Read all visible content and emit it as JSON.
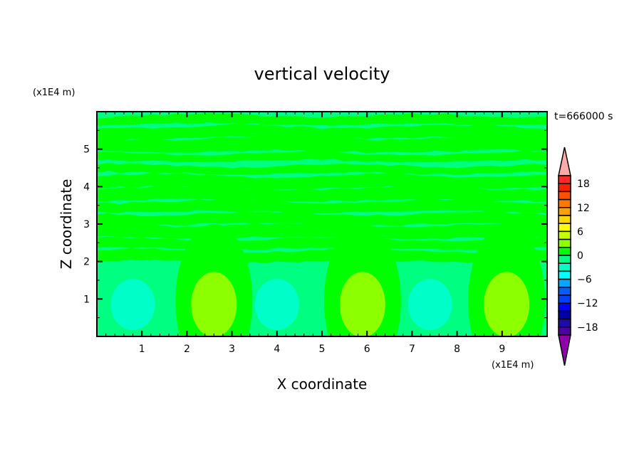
{
  "chart_data": {
    "type": "contour",
    "title": "vertical velocity",
    "xlabel": "X coordinate",
    "ylabel": "Z coordinate",
    "x_unit": "(x1E4 m)",
    "y_unit": "(x1E4 m)",
    "time_label": "t=666000 s",
    "xlim": [
      0,
      10
    ],
    "ylim": [
      0,
      6
    ],
    "x_ticks": [
      1,
      2,
      3,
      4,
      5,
      6,
      7,
      8,
      9
    ],
    "y_ticks": [
      1,
      2,
      3,
      4,
      5
    ],
    "grid": false,
    "colorbar": {
      "levels": [
        -20,
        -18,
        -16,
        -14,
        -12,
        -10,
        -8,
        -6,
        -4,
        -2,
        0,
        2,
        4,
        6,
        8,
        10,
        12,
        14,
        16,
        18,
        20
      ],
      "tick_labels": [
        "18",
        "12",
        "6",
        "0",
        "-6",
        "-12",
        "-18"
      ],
      "tick_values": [
        18,
        12,
        6,
        0,
        -6,
        -12,
        -18
      ],
      "colors_low_to_high": [
        "#4b00a8",
        "#1e0aa8",
        "#0000a8",
        "#0000ff",
        "#0040ff",
        "#0060ff",
        "#00a8ff",
        "#00ffff",
        "#00ffc8",
        "#00ff80",
        "#00ff00",
        "#8cff00",
        "#c8ff00",
        "#ffff00",
        "#ffd700",
        "#ffa000",
        "#ff7800",
        "#ff5000",
        "#ff2000",
        "#ff2828"
      ],
      "over_color": "#ffaaaa",
      "under_color": "#9000a8",
      "placement": "right"
    },
    "features": {
      "background_level_color": "#00ff80",
      "updraft_cells_x": [
        2.6,
        5.9,
        9.1
      ],
      "downdraft_cells_x": [
        0.8,
        4.0,
        7.4
      ]
    }
  }
}
